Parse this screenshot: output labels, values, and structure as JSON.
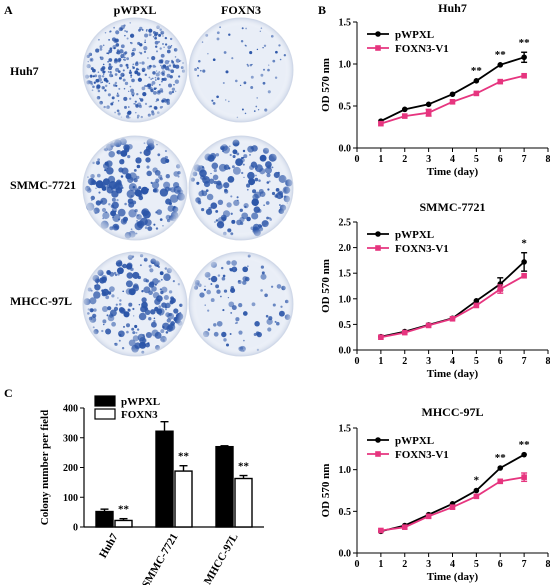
{
  "panel_letters": {
    "a": "A",
    "b": "B",
    "c": "C"
  },
  "colony_plates": {
    "columns": [
      "pWPXL",
      "FOXN3"
    ],
    "rows": [
      "Huh7",
      "SMMC-7721",
      "MHCC-97L"
    ]
  },
  "colors": {
    "pwpxl_line": "#000000",
    "foxn3_line": "#e6357f",
    "plate_stain": "#2b55a8",
    "plate_background": "#e9eef7",
    "bar_pwpxl": "#000000",
    "bar_foxn3": "#ffffff"
  },
  "chart_data": [
    {
      "type": "line",
      "title": "Huh7",
      "xlabel": "Time (day)",
      "ylabel": "OD 570 nm",
      "xlim": [
        0,
        8
      ],
      "ylim": [
        0,
        1.5
      ],
      "xticks": [
        "0",
        "1",
        "2",
        "3",
        "4",
        "5",
        "6",
        "7",
        "8"
      ],
      "yticks": [
        "0.0",
        "0.5",
        "1.0",
        "1.5"
      ],
      "legend_position": "top-left",
      "x": [
        1,
        2,
        3,
        4,
        5,
        6,
        7
      ],
      "series": [
        {
          "name": "pWPXL",
          "values": [
            0.32,
            0.46,
            0.52,
            0.64,
            0.8,
            0.99,
            1.08
          ],
          "errors": [
            0.01,
            0.01,
            0.01,
            0.01,
            0.01,
            0.01,
            0.06
          ]
        },
        {
          "name": "FOXN3-V1",
          "values": [
            0.29,
            0.38,
            0.42,
            0.55,
            0.65,
            0.79,
            0.86
          ],
          "errors": [
            0.01,
            0.01,
            0.04,
            0.01,
            0.01,
            0.01,
            0.01
          ]
        }
      ],
      "annotations": [
        {
          "x": 5,
          "text": "**"
        },
        {
          "x": 6,
          "text": "**"
        },
        {
          "x": 7,
          "text": "**"
        }
      ]
    },
    {
      "type": "line",
      "title": "SMMC-7721",
      "xlabel": "Time (day)",
      "ylabel": "OD 570 nm",
      "xlim": [
        0,
        8
      ],
      "ylim": [
        0,
        2.5
      ],
      "xticks": [
        "0",
        "1",
        "2",
        "3",
        "4",
        "5",
        "6",
        "7",
        "8"
      ],
      "yticks": [
        "0.0",
        "0.5",
        "1.0",
        "1.5",
        "2.0",
        "2.5"
      ],
      "legend_position": "top-left",
      "x": [
        1,
        2,
        3,
        4,
        5,
        6,
        7
      ],
      "series": [
        {
          "name": "pWPXL",
          "values": [
            0.26,
            0.36,
            0.49,
            0.62,
            0.96,
            1.29,
            1.72
          ],
          "errors": [
            0.01,
            0.01,
            0.01,
            0.01,
            0.01,
            0.12,
            0.18
          ]
        },
        {
          "name": "FOXN3-V1",
          "values": [
            0.25,
            0.34,
            0.48,
            0.61,
            0.87,
            1.19,
            1.45
          ],
          "errors": [
            0.01,
            0.01,
            0.01,
            0.01,
            0.01,
            0.08,
            0.01
          ]
        }
      ],
      "annotations": [
        {
          "x": 7,
          "text": "*"
        }
      ]
    },
    {
      "type": "line",
      "title": "MHCC-97L",
      "xlabel": "Time (day)",
      "ylabel": "OD 570 nm",
      "xlim": [
        0,
        8
      ],
      "ylim": [
        0,
        1.5
      ],
      "xticks": [
        "0",
        "1",
        "2",
        "3",
        "4",
        "5",
        "6",
        "7",
        "8"
      ],
      "yticks": [
        "0.0",
        "0.5",
        "1.0",
        "1.5"
      ],
      "legend_position": "top-left",
      "x": [
        1,
        2,
        3,
        4,
        5,
        6,
        7
      ],
      "series": [
        {
          "name": "pWPXL",
          "values": [
            0.26,
            0.33,
            0.46,
            0.59,
            0.75,
            1.02,
            1.18
          ],
          "errors": [
            0.01,
            0.01,
            0.01,
            0.01,
            0.01,
            0.01,
            0.01
          ]
        },
        {
          "name": "FOXN3-V1",
          "values": [
            0.27,
            0.31,
            0.44,
            0.55,
            0.68,
            0.86,
            0.91
          ],
          "errors": [
            0.01,
            0.01,
            0.01,
            0.01,
            0.01,
            0.01,
            0.05
          ]
        }
      ],
      "annotations": [
        {
          "x": 5,
          "text": "*"
        },
        {
          "x": 6,
          "text": "**"
        },
        {
          "x": 7,
          "text": "**"
        }
      ]
    },
    {
      "type": "bar",
      "title": "",
      "xlabel": "",
      "ylabel": "Colony number per field",
      "ylim": [
        0,
        400
      ],
      "yticks": [
        "0",
        "100",
        "200",
        "300",
        "400"
      ],
      "legend_position": "top-left",
      "categories": [
        "Huh7",
        "SMMC-7721",
        "MHCC-97L"
      ],
      "series": [
        {
          "name": "pWPXL",
          "values": [
            52,
            322,
            270
          ],
          "errors": [
            8,
            32,
            3
          ]
        },
        {
          "name": "FOXN3",
          "values": [
            22,
            188,
            163
          ],
          "errors": [
            6,
            18,
            10
          ]
        }
      ],
      "annotations": [
        {
          "category": "Huh7",
          "text": "**"
        },
        {
          "category": "SMMC-7721",
          "text": "**"
        },
        {
          "category": "MHCC-97L",
          "text": "**"
        }
      ]
    }
  ]
}
